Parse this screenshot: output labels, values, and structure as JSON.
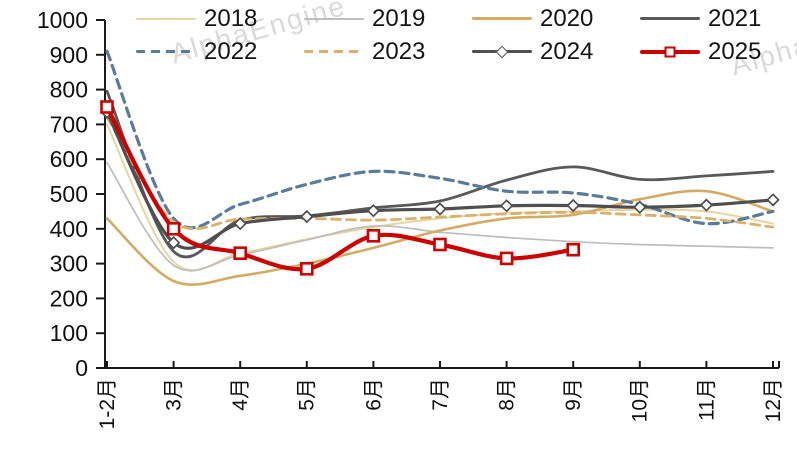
{
  "watermark": {
    "text": "AlphaEngine"
  },
  "chart_data": {
    "type": "line",
    "title": "",
    "xlabel": "",
    "ylabel": "",
    "grid": false,
    "legend_position": "top",
    "ylim": [
      0,
      1000
    ],
    "yticks": [
      0,
      100,
      200,
      300,
      400,
      500,
      600,
      700,
      800,
      900,
      1000
    ],
    "categories": [
      "1-2月",
      "3月",
      "4月",
      "5月",
      "6月",
      "7月",
      "8月",
      "9月",
      "10月",
      "11月",
      "12月"
    ],
    "series": [
      {
        "name": "2018",
        "color": "#e6d5a1",
        "style": "solid",
        "line_width": 2,
        "marker": "none",
        "values": [
          700,
          305,
          330,
          370,
          405,
          430,
          445,
          450,
          455,
          450,
          415
        ]
      },
      {
        "name": "2019",
        "color": "#bdbdbd",
        "style": "solid",
        "line_width": 1.7,
        "marker": "none",
        "values": [
          590,
          295,
          325,
          368,
          408,
          390,
          375,
          363,
          355,
          350,
          345
        ]
      },
      {
        "name": "2020",
        "color": "#d2ac64",
        "style": "solid",
        "line_width": 2.6,
        "marker": "none",
        "values": [
          430,
          250,
          265,
          300,
          345,
          395,
          430,
          440,
          485,
          508,
          450
        ]
      },
      {
        "name": "2021",
        "color": "#595959",
        "style": "solid",
        "line_width": 2.8,
        "marker": "none",
        "values": [
          795,
          335,
          425,
          437,
          460,
          480,
          540,
          578,
          542,
          552,
          565
        ]
      },
      {
        "name": "2022",
        "color": "#5b7b97",
        "style": "dashed",
        "line_width": 3.2,
        "marker": "none",
        "values": [
          910,
          430,
          470,
          528,
          565,
          545,
          508,
          503,
          470,
          415,
          450
        ]
      },
      {
        "name": "2023",
        "color": "#d8b16d",
        "style": "dashed",
        "line_width": 2.8,
        "marker": "none",
        "values": [
          720,
          420,
          428,
          430,
          425,
          434,
          443,
          447,
          440,
          430,
          405
        ]
      },
      {
        "name": "2024",
        "color": "#4f4f4f",
        "style": "solid",
        "line_width": 3.2,
        "marker": "diamond",
        "values": [
          735,
          360,
          415,
          435,
          452,
          457,
          466,
          467,
          462,
          468,
          483
        ]
      },
      {
        "name": "2025",
        "color": "#cc0000",
        "style": "solid",
        "line_width": 4.2,
        "marker": "square",
        "values": [
          750,
          400,
          330,
          285,
          380,
          355,
          315,
          340
        ]
      }
    ]
  }
}
